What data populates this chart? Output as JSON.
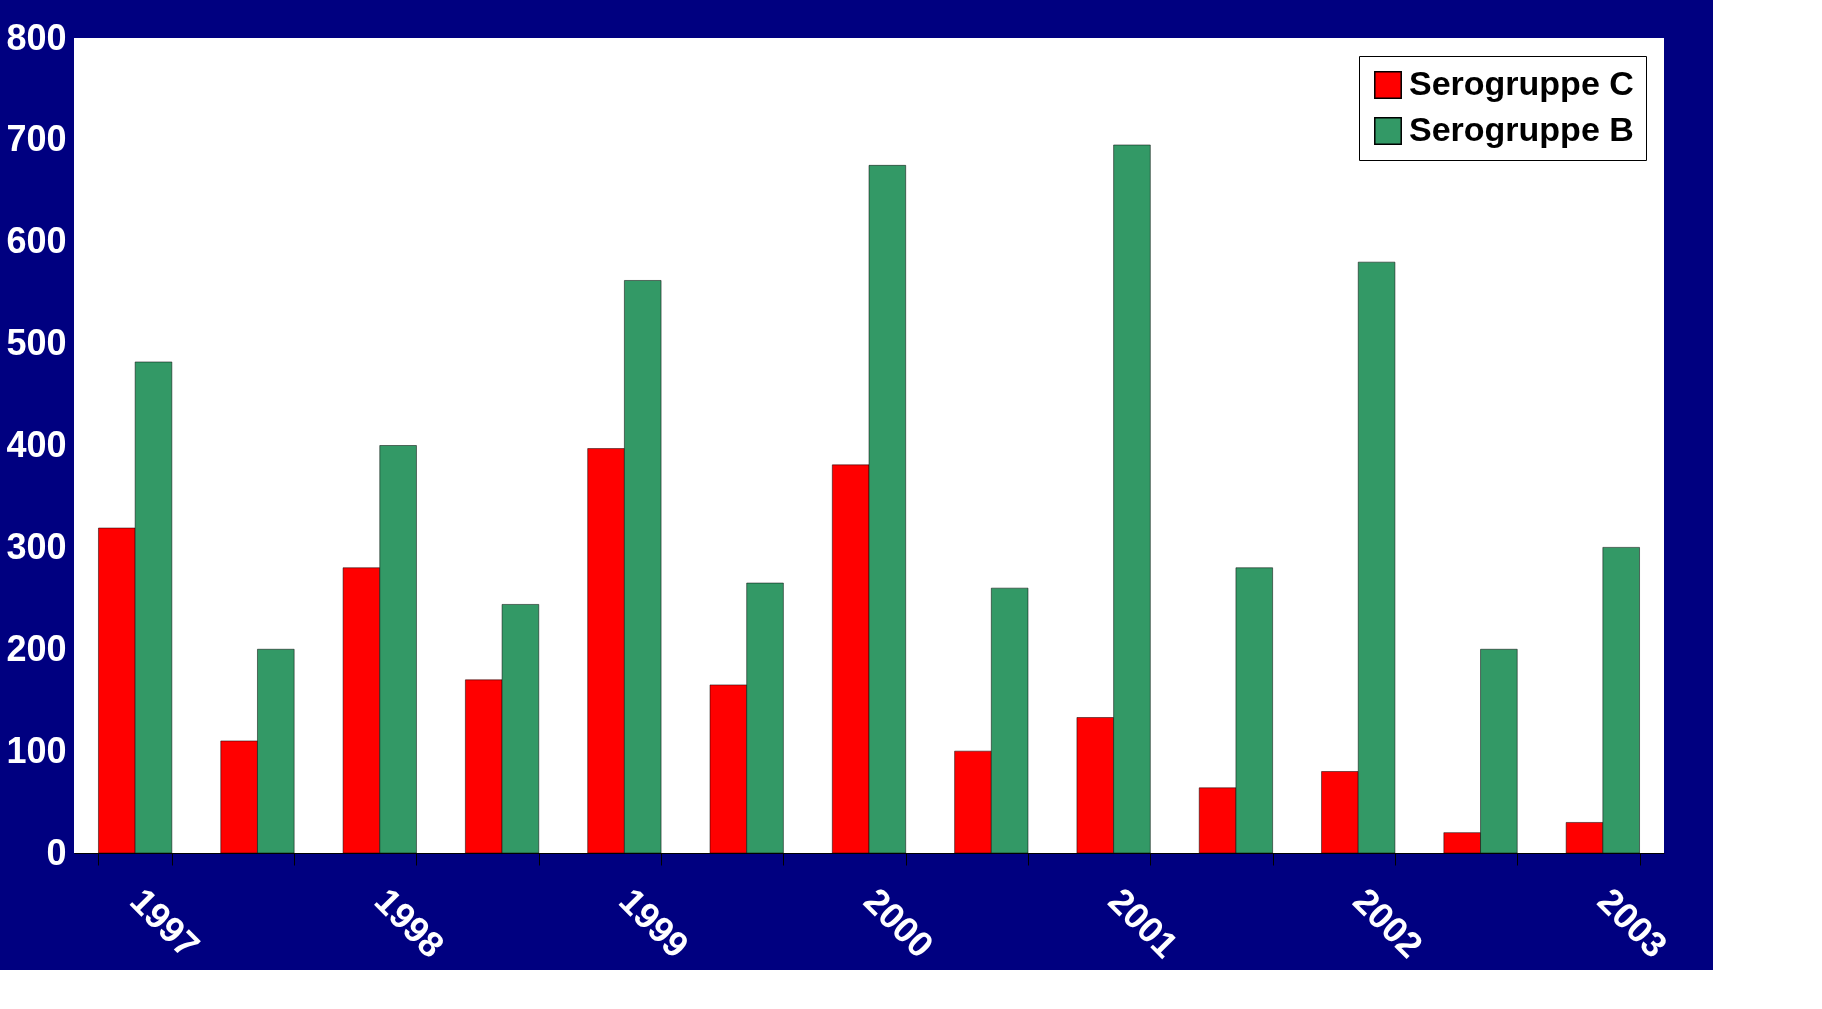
{
  "chart_data": {
    "type": "bar",
    "categories": [
      "1997",
      null,
      "1998",
      null,
      "1999",
      null,
      "2000",
      null,
      "2001",
      null,
      "2002",
      null,
      "2003"
    ],
    "series": [
      {
        "name": "Serogruppe C",
        "color": "#ff0000",
        "values": [
          319,
          110,
          280,
          170,
          397,
          165,
          381,
          100,
          133,
          64,
          80,
          20,
          30
        ]
      },
      {
        "name": "Serogruppe B",
        "color": "#339966",
        "values": [
          482,
          200,
          400,
          244,
          562,
          265,
          675,
          260,
          695,
          280,
          580,
          200,
          300
        ]
      }
    ],
    "ylim": [
      0,
      800
    ],
    "yticks": [
      0,
      100,
      200,
      300,
      400,
      500,
      600,
      700,
      800
    ],
    "grid": false,
    "legend": "top right"
  }
}
